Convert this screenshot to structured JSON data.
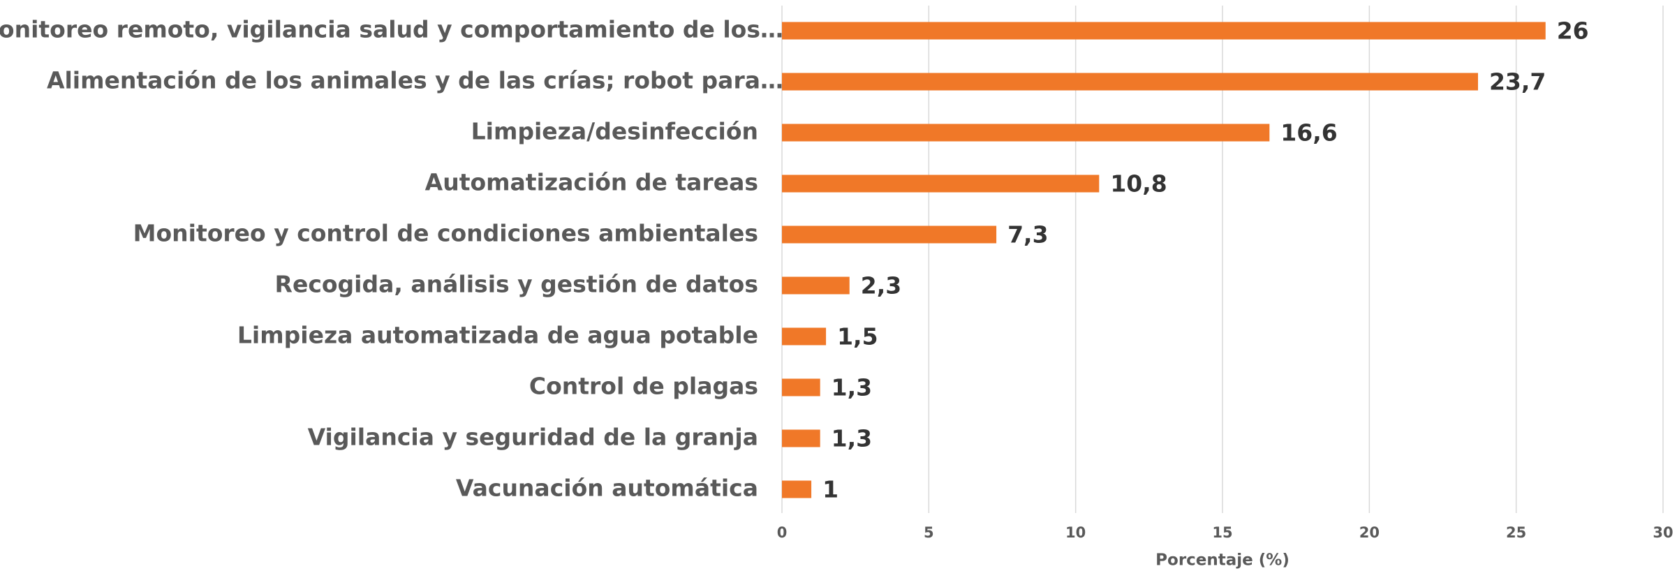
{
  "chart_data": {
    "type": "bar",
    "orientation": "horizontal",
    "categories": [
      "Monitoreo remoto, vigilancia salud y comportamiento de los…",
      "Alimentación de los animales y de las crías; robot para…",
      "Limpieza/desinfección",
      "Automatización de tareas",
      "Monitoreo y control de condiciones ambientales",
      "Recogida, análisis y gestión de datos",
      "Limpieza automatizada de agua potable",
      "Control de plagas",
      "Vigilancia y seguridad de la granja",
      "Vacunación automática"
    ],
    "values": [
      26,
      23.7,
      16.6,
      10.8,
      7.3,
      2.3,
      1.5,
      1.3,
      1.3,
      1
    ],
    "value_labels": [
      "26",
      "23,7",
      "16,6",
      "10,8",
      "7,3",
      "2,3",
      "1,5",
      "1,3",
      "1,3",
      "1"
    ],
    "color": "#f07828",
    "x_label": "Porcentaje (%)",
    "xlim": [
      0,
      30
    ],
    "xticks": [
      0,
      5,
      10,
      15,
      20,
      25,
      30
    ],
    "grid": true
  }
}
